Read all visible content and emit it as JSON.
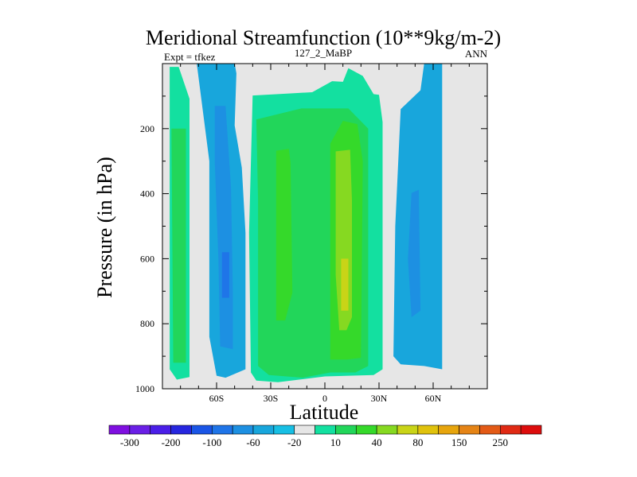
{
  "chart_data": {
    "type": "contour",
    "title": "Meridional Streamfunction (10**9kg/m-2)",
    "left_label": "Expt = tfkez",
    "center_label": "127_2_MaBP",
    "right_label": "ANN",
    "xlabel": "Latitude",
    "ylabel": "Pressure (in hPa)",
    "xlim": [
      -90,
      90
    ],
    "ylim": [
      1000,
      0
    ],
    "x_ticks": [
      {
        "value": -60,
        "label": "60S"
      },
      {
        "value": -30,
        "label": "30S"
      },
      {
        "value": 0,
        "label": "0"
      },
      {
        "value": 30,
        "label": "30N"
      },
      {
        "value": 60,
        "label": "60N"
      }
    ],
    "y_ticks": [
      {
        "value": 200,
        "label": "200"
      },
      {
        "value": 400,
        "label": "400"
      },
      {
        "value": 600,
        "label": "600"
      },
      {
        "value": 800,
        "label": "800"
      },
      {
        "value": 1000,
        "label": "1000"
      }
    ],
    "background_color": "#e6e6e6",
    "colorbar": {
      "colors": [
        "#7f0fe0",
        "#6a1fe6",
        "#4a1ee8",
        "#2626df",
        "#1a55e6",
        "#1f75e8",
        "#1d90e2",
        "#18a6dc",
        "#17bfe4",
        "#e6e6e6",
        "#13e0a0",
        "#22d65a",
        "#35d92a",
        "#86d921",
        "#c9d417",
        "#e0c20c",
        "#e7a50d",
        "#e58416",
        "#e35a16",
        "#e02a14",
        "#dd0d0d"
      ],
      "labels": [
        "-300",
        "-200",
        "-100",
        "-60",
        "-20",
        "10",
        "40",
        "80",
        "150",
        "250"
      ]
    },
    "regions": [
      {
        "cls": 1,
        "polygon": [
          [
            -86,
            10
          ],
          [
            -81,
            10
          ],
          [
            -75,
            108
          ],
          [
            -75,
            964
          ],
          [
            -82,
            972
          ],
          [
            -86,
            940
          ]
        ]
      },
      {
        "cls": 2,
        "polygon": [
          [
            -85,
            200
          ],
          [
            -77,
            200
          ],
          [
            -77,
            920
          ],
          [
            -84,
            920
          ]
        ]
      },
      {
        "cls": -2,
        "polygon": [
          [
            -71,
            0
          ],
          [
            -50,
            0
          ],
          [
            -49,
            30
          ],
          [
            -50,
            190
          ],
          [
            -46,
            320
          ],
          [
            -44,
            520
          ],
          [
            -44,
            940
          ],
          [
            -55,
            966
          ],
          [
            -60,
            960
          ],
          [
            -64,
            840
          ],
          [
            -64,
            300
          ]
        ]
      },
      {
        "cls": -3,
        "polygon": [
          [
            -61,
            130
          ],
          [
            -55,
            130
          ],
          [
            -52,
            380
          ],
          [
            -51,
            700
          ],
          [
            -51,
            878
          ],
          [
            -58,
            870
          ],
          [
            -59,
            600
          ],
          [
            -61,
            300
          ]
        ]
      },
      {
        "cls": -4,
        "polygon": [
          [
            -57,
            580
          ],
          [
            -53,
            580
          ],
          [
            -53,
            720
          ],
          [
            -57,
            720
          ]
        ]
      },
      {
        "cls": 1,
        "polygon": [
          [
            -40,
            98
          ],
          [
            -20,
            92
          ],
          [
            -7,
            88
          ],
          [
            4,
            54
          ],
          [
            10,
            56
          ],
          [
            13,
            14
          ],
          [
            21,
            38
          ],
          [
            27,
            94
          ],
          [
            30,
            96
          ],
          [
            32,
            180
          ],
          [
            32,
            940
          ],
          [
            27,
            958
          ],
          [
            0,
            962
          ],
          [
            -26,
            980
          ],
          [
            -38,
            975
          ],
          [
            -41,
            950
          ],
          [
            -42,
            520
          ]
        ]
      },
      {
        "cls": 2,
        "polygon": [
          [
            -38,
            172
          ],
          [
            -13,
            138
          ],
          [
            13,
            138
          ],
          [
            24,
            200
          ],
          [
            24,
            930
          ],
          [
            17,
            950
          ],
          [
            3,
            950
          ],
          [
            -12,
            966
          ],
          [
            -31,
            958
          ],
          [
            -37,
            930
          ],
          [
            -37,
            420
          ]
        ]
      },
      {
        "cls": 3,
        "polygon": [
          [
            -27,
            268
          ],
          [
            -20,
            262
          ],
          [
            -19,
            305
          ],
          [
            -18,
            705
          ],
          [
            -22,
            790
          ],
          [
            -27,
            790
          ],
          [
            -27,
            500
          ]
        ]
      },
      {
        "cls": 3,
        "polygon": [
          [
            3,
            246
          ],
          [
            10,
            176
          ],
          [
            18,
            186
          ],
          [
            21,
            300
          ],
          [
            20,
            905
          ],
          [
            12,
            910
          ],
          [
            3,
            910
          ],
          [
            3,
            500
          ]
        ]
      },
      {
        "cls": 4,
        "polygon": [
          [
            6,
            270
          ],
          [
            14,
            265
          ],
          [
            15,
            420
          ],
          [
            15,
            780
          ],
          [
            12,
            820
          ],
          [
            8,
            820
          ],
          [
            6,
            650
          ]
        ]
      },
      {
        "cls": 5,
        "polygon": [
          [
            9,
            600
          ],
          [
            13,
            600
          ],
          [
            13,
            760
          ],
          [
            9,
            760
          ]
        ]
      },
      {
        "cls": -2,
        "polygon": [
          [
            42,
            140
          ],
          [
            53,
            82
          ],
          [
            55,
            0
          ],
          [
            65,
            0
          ],
          [
            65,
            940
          ],
          [
            55,
            930
          ],
          [
            42,
            925
          ],
          [
            38,
            900
          ],
          [
            39,
            500
          ]
        ]
      },
      {
        "cls": -3,
        "polygon": [
          [
            48,
            398
          ],
          [
            52,
            388
          ],
          [
            53,
            760
          ],
          [
            48,
            780
          ],
          [
            46,
            600
          ]
        ]
      },
      {
        "cls": 0,
        "polygon": [
          [
            -4,
            0
          ],
          [
            -2,
            0
          ],
          [
            -2,
            10
          ],
          [
            -4,
            10
          ]
        ]
      }
    ]
  }
}
